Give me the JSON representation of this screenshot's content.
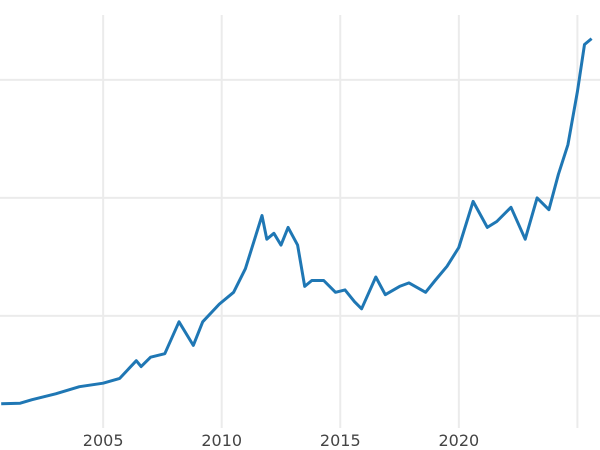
{
  "chart_data": {
    "type": "line",
    "title": "",
    "xlabel": "",
    "ylabel": "",
    "xlim": [
      2000.65,
      2025.7
    ],
    "ylim": [
      50,
      3550
    ],
    "x_ticks": [
      2005,
      2010,
      2015,
      2020,
      2025
    ],
    "x_tick_labels": [
      "2005",
      "2010",
      "2015",
      "2020",
      ""
    ],
    "y_gridlines": [
      1000,
      2000,
      3000
    ],
    "y_tick_labels_shown": false,
    "grid": true,
    "legend": "none",
    "color": "#1f77b4",
    "series": [
      {
        "x": [
          2000.7,
          2001.5,
          2002,
          2003,
          2004,
          2005,
          2005.7,
          2006.4,
          2006.6,
          2007,
          2007.6,
          2008.2,
          2008.8,
          2009.2,
          2009.9,
          2010.5,
          2011,
          2011.7,
          2011.9,
          2012.2,
          2012.5,
          2012.8,
          2013.2,
          2013.5,
          2013.8,
          2014.3,
          2014.8,
          2015.2,
          2015.6,
          2015.9,
          2016.5,
          2016.9,
          2017.5,
          2017.9,
          2018.6,
          2019,
          2019.5,
          2020,
          2020.6,
          2021.2,
          2021.6,
          2022.2,
          2022.8,
          2023.3,
          2023.8,
          2024.2,
          2024.6,
          2025,
          2025.3,
          2025.6
        ],
        "y": [
          255,
          260,
          290,
          340,
          400,
          430,
          470,
          620,
          570,
          650,
          680,
          950,
          750,
          950,
          1100,
          1200,
          1400,
          1850,
          1650,
          1700,
          1600,
          1750,
          1600,
          1250,
          1300,
          1300,
          1200,
          1220,
          1120,
          1060,
          1330,
          1180,
          1250,
          1280,
          1200,
          1300,
          1420,
          1580,
          1970,
          1750,
          1800,
          1920,
          1650,
          2000,
          1900,
          2200,
          2450,
          2900,
          3300,
          3350
        ]
      }
    ]
  }
}
